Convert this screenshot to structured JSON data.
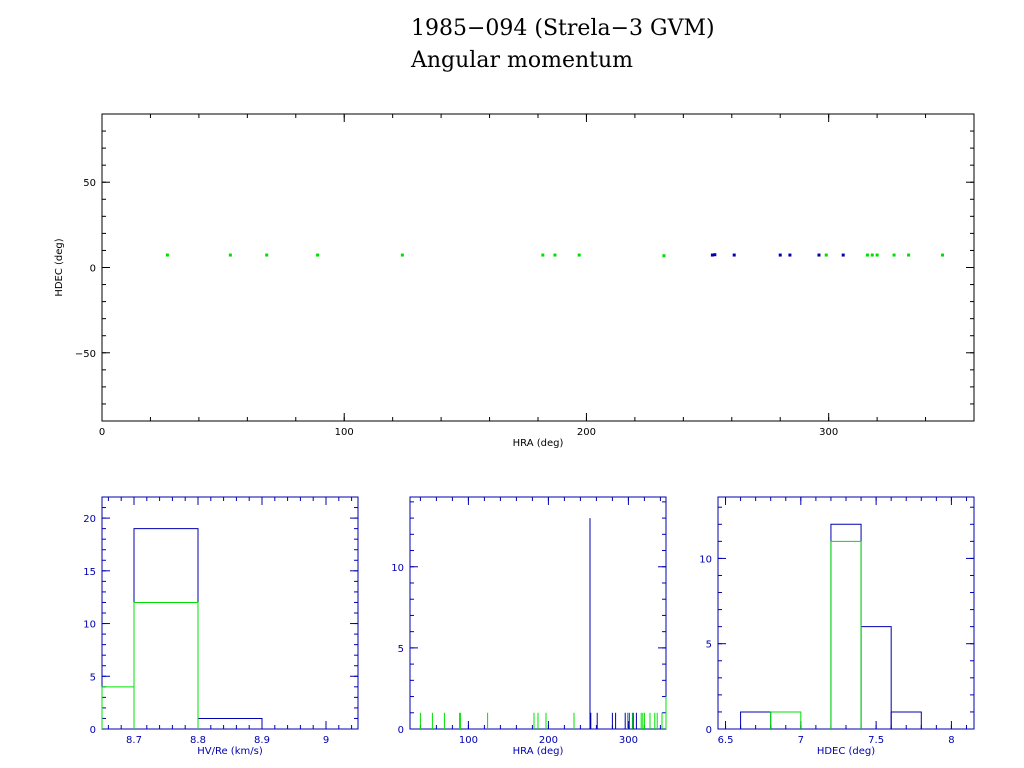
{
  "page": {
    "title": "1985−094 (Strela−3 GVM)",
    "subtitle": "Angular momentum"
  },
  "colors": {
    "blue": "#0000b0",
    "green": "#00e000",
    "axis_main": "#000000"
  },
  "chart_data": [
    {
      "type": "scatter",
      "xlabel": "HRA (deg)",
      "ylabel": "HDEC (deg)",
      "xlim": [
        0,
        360
      ],
      "ylim": [
        -90,
        90
      ],
      "xticks": [
        0,
        100,
        200,
        300
      ],
      "yticks": [
        -50,
        0,
        50
      ],
      "series": [
        {
          "color": "#00e000",
          "points": [
            [
              27,
              7.3
            ],
            [
              53,
              7.3
            ],
            [
              68,
              7.3
            ],
            [
              89,
              7.3
            ],
            [
              124,
              7.3
            ],
            [
              182,
              7.3
            ],
            [
              187,
              7.3
            ],
            [
              197,
              7.3
            ],
            [
              232,
              6.9
            ],
            [
              299,
              7.3
            ],
            [
              316,
              7.3
            ],
            [
              318,
              7.3
            ],
            [
              320,
              7.3
            ],
            [
              327,
              7.3
            ],
            [
              333,
              7.3
            ],
            [
              347,
              7.3
            ]
          ]
        },
        {
          "color": "#0000b0",
          "points": [
            [
              252,
              7.3
            ],
            [
              253,
              7.5
            ],
            [
              261,
              7.3
            ],
            [
              280,
              7.3
            ],
            [
              284,
              7.3
            ],
            [
              296,
              7.3
            ],
            [
              306,
              7.3
            ]
          ]
        }
      ]
    },
    {
      "type": "histogram",
      "xlabel": "HV/Re (km/s)",
      "xlim": [
        8.65,
        9.05
      ],
      "ylim": [
        0,
        22
      ],
      "xticks": [
        8.7,
        8.8,
        8.9,
        9
      ],
      "xticklabels": [
        "8.7",
        "8.8",
        "8.9",
        "9"
      ],
      "yticks": [
        0,
        5,
        10,
        15,
        20
      ],
      "series": [
        {
          "color": "#0000b0",
          "bins": [
            [
              8.6,
              8.7,
              0
            ],
            [
              8.7,
              8.8,
              19
            ],
            [
              8.8,
              8.9,
              1
            ]
          ]
        },
        {
          "color": "#00e000",
          "bins": [
            [
              8.6,
              8.7,
              4
            ],
            [
              8.7,
              8.8,
              12
            ]
          ]
        }
      ]
    },
    {
      "type": "histogram",
      "xlabel": "HRA (deg)",
      "xlim": [
        27,
        347
      ],
      "ylim": [
        0,
        14.3
      ],
      "xticks": [
        100,
        200,
        300
      ],
      "yticks": [
        0,
        5,
        10
      ],
      "series": [
        {
          "color": "#00e000",
          "ticks": [
            {
              "x": 40,
              "h": 1
            },
            {
              "x": 55,
              "h": 1
            },
            {
              "x": 70,
              "h": 1
            },
            {
              "x": 89,
              "h": 1
            },
            {
              "x": 90,
              "h": 1
            },
            {
              "x": 124,
              "h": 1
            },
            {
              "x": 182,
              "h": 1
            },
            {
              "x": 187,
              "h": 1
            },
            {
              "x": 197,
              "h": 1
            },
            {
              "x": 232,
              "h": 1
            },
            {
              "x": 299,
              "h": 1
            },
            {
              "x": 305,
              "h": 1
            },
            {
              "x": 316,
              "h": 1
            },
            {
              "x": 318,
              "h": 1
            },
            {
              "x": 320,
              "h": 1
            },
            {
              "x": 327,
              "h": 1
            },
            {
              "x": 333,
              "h": 1
            },
            {
              "x": 336,
              "h": 1
            },
            {
              "x": 342,
              "h": 1
            },
            {
              "x": 347,
              "h": 2
            }
          ]
        },
        {
          "color": "#0000b0",
          "ticks": [
            {
              "x": 252,
              "h": 13
            },
            {
              "x": 253,
              "h": 1
            },
            {
              "x": 261,
              "h": 1
            },
            {
              "x": 280,
              "h": 1
            },
            {
              "x": 284,
              "h": 1
            },
            {
              "x": 296,
              "h": 1
            },
            {
              "x": 301,
              "h": 1
            },
            {
              "x": 306,
              "h": 1
            },
            {
              "x": 310,
              "h": 1
            }
          ]
        }
      ]
    },
    {
      "type": "histogram",
      "xlabel": "HDEC (deg)",
      "xlim": [
        6.45,
        8.15
      ],
      "ylim": [
        0,
        13.6
      ],
      "xticks": [
        6.5,
        7,
        7.5,
        8
      ],
      "xticklabels": [
        "6.5",
        "7",
        "7.5",
        "8"
      ],
      "yticks": [
        0,
        5,
        10
      ],
      "series": [
        {
          "color": "#0000b0",
          "bins": [
            [
              6.6,
              6.8,
              1
            ],
            [
              6.8,
              7.0,
              0
            ],
            [
              7.0,
              7.2,
              0
            ],
            [
              7.2,
              7.4,
              12
            ],
            [
              7.4,
              7.6,
              6
            ],
            [
              7.6,
              7.8,
              1
            ]
          ]
        },
        {
          "color": "#00e000",
          "bins": [
            [
              6.8,
              7.0,
              1
            ],
            [
              7.2,
              7.4,
              11
            ]
          ]
        }
      ]
    }
  ]
}
